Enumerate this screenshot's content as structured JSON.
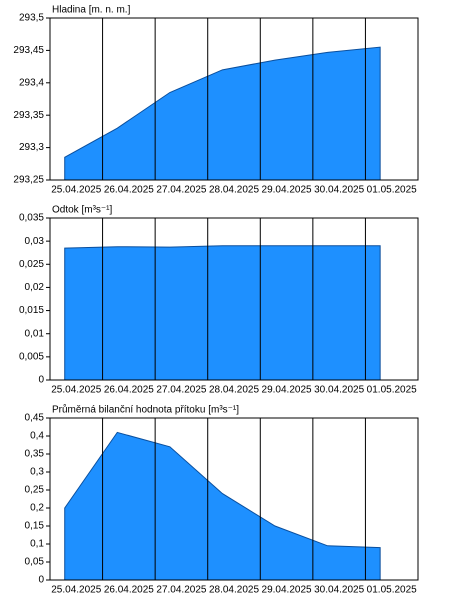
{
  "chart_data": [
    {
      "type": "area",
      "title": "Hladina [m. n. m.]",
      "categories": [
        "25.04.2025",
        "26.04.2025",
        "27.04.2025",
        "28.04.2025",
        "29.04.2025",
        "30.04.2025",
        "01.05.2025"
      ],
      "values": [
        293.285,
        293.33,
        293.385,
        293.42,
        293.435,
        293.447,
        293.455
      ],
      "color": "#1e90ff",
      "ylim": [
        293.25,
        293.5
      ],
      "yticks": [
        {
          "value": 293.25,
          "label": "293,25"
        },
        {
          "value": 293.3,
          "label": "293,3"
        },
        {
          "value": 293.35,
          "label": "293,35"
        },
        {
          "value": 293.4,
          "label": "293,4"
        },
        {
          "value": 293.45,
          "label": "293,45"
        },
        {
          "value": 293.5,
          "label": "293,5"
        }
      ],
      "grid": true
    },
    {
      "type": "area",
      "title": "Odtok [m³s⁻¹]",
      "categories": [
        "25.04.2025",
        "26.04.2025",
        "27.04.2025",
        "28.04.2025",
        "29.04.2025",
        "30.04.2025",
        "01.05.2025"
      ],
      "values": [
        0.0285,
        0.0288,
        0.0287,
        0.029,
        0.029,
        0.029,
        0.029
      ],
      "color": "#1e90ff",
      "ylim": [
        0,
        0.035
      ],
      "yticks": [
        0,
        {
          "value": 0.005,
          "label": "0,005"
        },
        {
          "value": 0.01,
          "label": "0,01"
        },
        {
          "value": 0.015,
          "label": "0,015"
        },
        {
          "value": 0.02,
          "label": "0,02"
        },
        {
          "value": 0.025,
          "label": "0,025"
        },
        {
          "value": 0.03,
          "label": "0,03"
        },
        {
          "value": 0.035,
          "label": "0,035"
        }
      ],
      "grid": true
    },
    {
      "type": "area",
      "title": "Průměrná bilanční hodnota přítoku   [m³s⁻¹]",
      "categories": [
        "25.04.2025",
        "26.04.2025",
        "27.04.2025",
        "28.04.2025",
        "29.04.2025",
        "30.04.2025",
        "01.05.2025"
      ],
      "values": [
        0.2,
        0.41,
        0.37,
        0.24,
        0.15,
        0.095,
        0.09
      ],
      "color": "#1e90ff",
      "ylim": [
        0,
        0.45
      ],
      "yticks": [
        0,
        {
          "value": 0.05,
          "label": "0,05"
        },
        {
          "value": 0.1,
          "label": "0,1"
        },
        {
          "value": 0.15,
          "label": "0,15"
        },
        {
          "value": 0.2,
          "label": "0,2"
        },
        {
          "value": 0.25,
          "label": "0,25"
        },
        {
          "value": 0.3,
          "label": "0,3"
        },
        {
          "value": 0.35,
          "label": "0,35"
        },
        {
          "value": 0.4,
          "label": "0,4"
        },
        {
          "value": 0.45,
          "label": "0,45"
        }
      ],
      "grid": true
    }
  ]
}
